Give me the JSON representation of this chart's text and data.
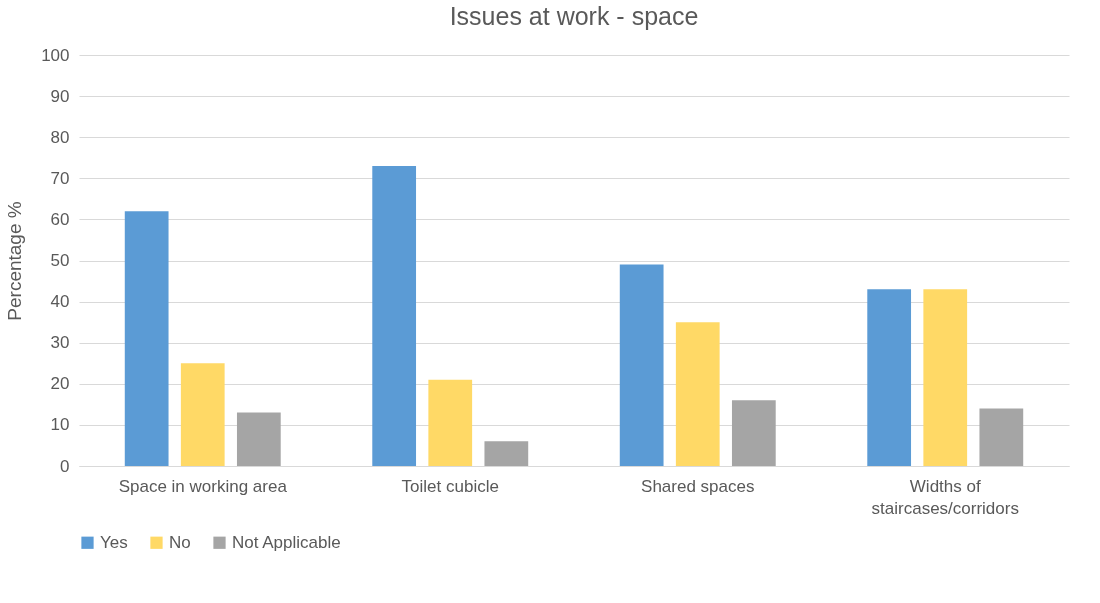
{
  "chart_data": {
    "type": "bar",
    "title": "Issues at work - space",
    "ylabel": "Percentage %",
    "categories": [
      "Space in working area",
      "Toilet cubicle",
      "Shared spaces",
      "Widths of staircases/corridors"
    ],
    "series": [
      {
        "name": "Yes",
        "color": "#5b9bd5",
        "values": [
          62,
          73,
          49,
          43
        ]
      },
      {
        "name": "No",
        "color": "#ffd966",
        "values": [
          25,
          21,
          35,
          43
        ]
      },
      {
        "name": "Not Applicable",
        "color": "#a5a5a5",
        "values": [
          13,
          6,
          16,
          14
        ]
      }
    ],
    "ylim": [
      0,
      100
    ],
    "yticks": [
      0,
      10,
      20,
      30,
      40,
      50,
      60,
      70,
      80,
      90,
      100
    ],
    "grid": true,
    "legend": "bottom"
  }
}
